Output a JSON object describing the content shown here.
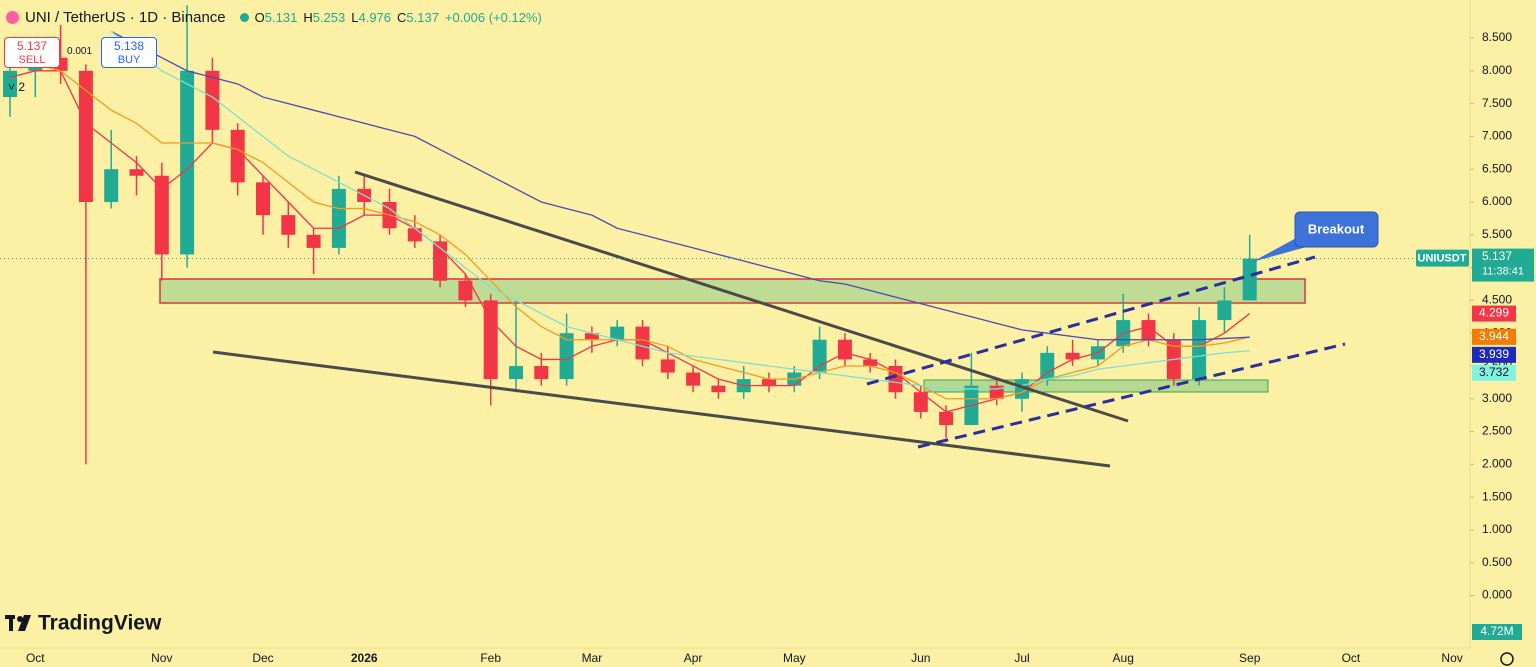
{
  "chart_data": {
    "type": "candlestick",
    "categories": [
      null,
      "Oct",
      null,
      null,
      null,
      null,
      "Nov",
      null,
      null,
      null,
      "Dec",
      null,
      null,
      null,
      "2026",
      null,
      null,
      null,
      null,
      "Feb",
      null,
      null,
      null,
      "Mar",
      null,
      null,
      null,
      "Apr",
      null,
      null,
      null,
      "May",
      null,
      null,
      null,
      null,
      "Jun",
      null,
      null,
      null,
      "Jul",
      null,
      null,
      null,
      "Aug",
      null,
      null,
      null,
      null,
      "Sep",
      null,
      null,
      null,
      "Oct",
      null,
      null,
      null,
      "Nov"
    ],
    "open": [
      7.6,
      8.0,
      8.2,
      8.0,
      6.0,
      6.5,
      6.4,
      5.2,
      8.0,
      7.1,
      6.3,
      5.8,
      5.5,
      5.3,
      6.2,
      6.0,
      5.6,
      5.4,
      4.8,
      4.5,
      3.3,
      3.5,
      3.3,
      4.0,
      3.9,
      4.1,
      3.6,
      3.4,
      3.2,
      3.1,
      3.3,
      3.2,
      3.4,
      3.9,
      3.6,
      3.5,
      3.1,
      2.8,
      2.6,
      3.2,
      3.0,
      3.3,
      3.7,
      3.6,
      3.8,
      4.2,
      3.9,
      3.3,
      4.2,
      4.5,
      null,
      null,
      null,
      null,
      null,
      null,
      null,
      null
    ],
    "high": [
      8.3,
      8.5,
      8.7,
      8.1,
      7.1,
      6.7,
      6.6,
      9.0,
      8.2,
      7.2,
      6.4,
      6.0,
      5.6,
      6.4,
      6.4,
      6.2,
      5.8,
      5.5,
      4.9,
      4.6,
      4.5,
      3.7,
      4.3,
      4.1,
      4.2,
      4.2,
      3.8,
      3.5,
      3.3,
      3.5,
      3.4,
      3.5,
      4.1,
      4.0,
      3.7,
      3.6,
      3.2,
      2.9,
      3.7,
      3.3,
      3.4,
      3.8,
      3.9,
      3.9,
      4.6,
      4.3,
      4.0,
      4.4,
      4.7,
      5.5,
      null,
      null,
      null,
      null,
      null,
      null,
      null,
      null
    ],
    "low": [
      7.3,
      7.6,
      7.8,
      2.0,
      5.9,
      6.1,
      4.8,
      5.0,
      6.9,
      6.1,
      5.5,
      5.3,
      4.9,
      5.2,
      5.8,
      5.5,
      5.3,
      4.7,
      4.4,
      2.9,
      3.1,
      3.2,
      3.2,
      3.7,
      3.8,
      3.5,
      3.3,
      3.1,
      3.0,
      3.0,
      3.1,
      3.1,
      3.3,
      3.5,
      3.4,
      3.0,
      2.7,
      2.4,
      2.6,
      2.9,
      2.8,
      3.2,
      3.5,
      3.5,
      3.7,
      3.8,
      3.2,
      3.2,
      4.0,
      4.5,
      null,
      null,
      null,
      null,
      null,
      null,
      null,
      null
    ],
    "close": [
      8.0,
      8.2,
      8.0,
      6.0,
      6.5,
      6.4,
      5.2,
      8.0,
      7.1,
      6.3,
      5.8,
      5.5,
      5.3,
      6.2,
      6.0,
      5.6,
      5.4,
      4.8,
      4.5,
      3.3,
      3.5,
      3.3,
      4.0,
      3.9,
      4.1,
      3.6,
      3.4,
      3.2,
      3.1,
      3.3,
      3.2,
      3.4,
      3.9,
      3.6,
      3.5,
      3.1,
      2.8,
      2.6,
      3.2,
      3.0,
      3.3,
      3.7,
      3.6,
      3.8,
      4.2,
      3.9,
      3.3,
      4.2,
      4.5,
      5.137,
      null,
      null,
      null,
      null,
      null,
      null,
      null,
      null
    ],
    "up_color": "#22ab94",
    "down_color": "#f23645",
    "indicators": [
      {
        "color": "#f23645",
        "values": [
          7.9,
          8.0,
          8.0,
          7.2,
          6.9,
          6.6,
          6.2,
          6.5,
          6.9,
          6.8,
          6.4,
          6.0,
          5.6,
          5.6,
          5.8,
          5.8,
          5.6,
          5.3,
          4.9,
          4.2,
          3.8,
          3.6,
          3.6,
          3.8,
          3.9,
          3.9,
          3.7,
          3.5,
          3.3,
          3.2,
          3.2,
          3.2,
          3.5,
          3.7,
          3.6,
          3.4,
          3.1,
          2.8,
          2.9,
          3.0,
          3.1,
          3.4,
          3.6,
          3.7,
          4.0,
          4.1,
          3.8,
          3.8,
          4.0,
          4.299,
          null,
          null,
          null,
          null,
          null,
          null,
          null,
          null
        ],
        "label_bg": "#f23645"
      },
      {
        "color": "#f59a23",
        "values": [
          8.2,
          8.1,
          8.0,
          7.7,
          7.4,
          7.2,
          6.9,
          6.9,
          6.9,
          6.8,
          6.6,
          6.3,
          6.0,
          5.9,
          5.9,
          5.8,
          5.7,
          5.5,
          5.2,
          4.8,
          4.4,
          4.1,
          3.9,
          3.9,
          3.9,
          3.9,
          3.8,
          3.6,
          3.5,
          3.4,
          3.3,
          3.3,
          3.4,
          3.5,
          3.5,
          3.4,
          3.2,
          3.0,
          3.0,
          3.0,
          3.1,
          3.3,
          3.4,
          3.5,
          3.8,
          3.9,
          3.8,
          3.8,
          3.85,
          3.944,
          null,
          null,
          null,
          null,
          null,
          null,
          null,
          null
        ],
        "label_bg": "#f57c00"
      },
      {
        "color": "#4a4ab8",
        "values": [
          null,
          null,
          null,
          null,
          8.6,
          8.4,
          8.2,
          8.0,
          7.9,
          7.8,
          7.6,
          7.5,
          7.4,
          7.3,
          7.2,
          7.1,
          7.0,
          6.8,
          6.6,
          6.4,
          6.2,
          6.0,
          5.9,
          5.8,
          5.6,
          5.5,
          5.4,
          5.3,
          5.2,
          5.1,
          5.0,
          4.9,
          4.8,
          4.75,
          4.65,
          4.55,
          4.45,
          4.35,
          4.25,
          4.15,
          4.05,
          4.0,
          3.95,
          3.9,
          3.9,
          3.9,
          3.9,
          3.9,
          3.92,
          3.939,
          null,
          null,
          null,
          null,
          null,
          null,
          null,
          null
        ],
        "label_bg": "#1e2ab8"
      },
      {
        "color": "#7fe0d0",
        "values": [
          null,
          null,
          null,
          null,
          8.6,
          8.3,
          8.0,
          7.8,
          7.6,
          7.3,
          7.0,
          6.7,
          6.5,
          6.3,
          6.1,
          5.9,
          5.6,
          5.3,
          5.0,
          4.7,
          4.5,
          4.3,
          4.1,
          4.0,
          3.9,
          3.8,
          3.7,
          3.65,
          3.6,
          3.55,
          3.5,
          3.45,
          3.4,
          3.35,
          3.3,
          3.25,
          3.2,
          3.15,
          3.15,
          3.15,
          3.2,
          3.3,
          3.35,
          3.45,
          3.5,
          3.55,
          3.6,
          3.65,
          3.7,
          3.732,
          null,
          null,
          null,
          null,
          null,
          null,
          null,
          null
        ],
        "label_bg": "#7ff2e0"
      }
    ],
    "ylim": [
      -0.8,
      9.08
    ],
    "yticks": [
      {
        "value": 8.5,
        "label": "8.500"
      },
      {
        "value": 8,
        "label": "8.000"
      },
      {
        "value": 7.5,
        "label": "7.500"
      },
      {
        "value": 7,
        "label": "7.000"
      },
      {
        "value": 6.5,
        "label": "6.500"
      },
      {
        "value": 6,
        "label": "6.000"
      },
      {
        "value": 5.5,
        "label": "5.500"
      },
      {
        "value": 5,
        "label": "5.000"
      },
      {
        "value": 4.5,
        "label": "4.500"
      },
      {
        "value": 4,
        "label": "4.000"
      },
      {
        "value": 3.5,
        "label": "3.500"
      },
      {
        "value": 3,
        "label": "3.000"
      },
      {
        "value": 2.5,
        "label": "2.500"
      },
      {
        "value": 2,
        "label": "2.000"
      },
      {
        "value": 1.5,
        "label": "1.500"
      },
      {
        "value": 1,
        "label": "1.000"
      },
      {
        "value": 0.5,
        "label": "0.500"
      },
      {
        "value": 0,
        "label": "0.000"
      }
    ],
    "grid": false,
    "annotation": "Breakout",
    "price_tag": {
      "symbol": "UNIUSDT",
      "price": 5.137,
      "countdown": "11:38:41",
      "color": "#22ab94"
    },
    "volume_label": "4.72M"
  },
  "ui": {
    "symbol": "UNI / TetherUS · 1D · Binance",
    "ohlc": [
      {
        "key": "O",
        "value": 5.131
      },
      {
        "key": "H",
        "value": 5.253
      },
      {
        "key": "L",
        "value": 4.976
      },
      {
        "key": "C",
        "value": 5.137
      }
    ],
    "change": "+0.006 (+0.12%)",
    "sell": {
      "price": 5.137,
      "label": "SELL"
    },
    "spread": 0.001,
    "buy": {
      "price": 5.138,
      "label": "BUY"
    },
    "indicator_count": "2",
    "logo": "TradingView"
  }
}
